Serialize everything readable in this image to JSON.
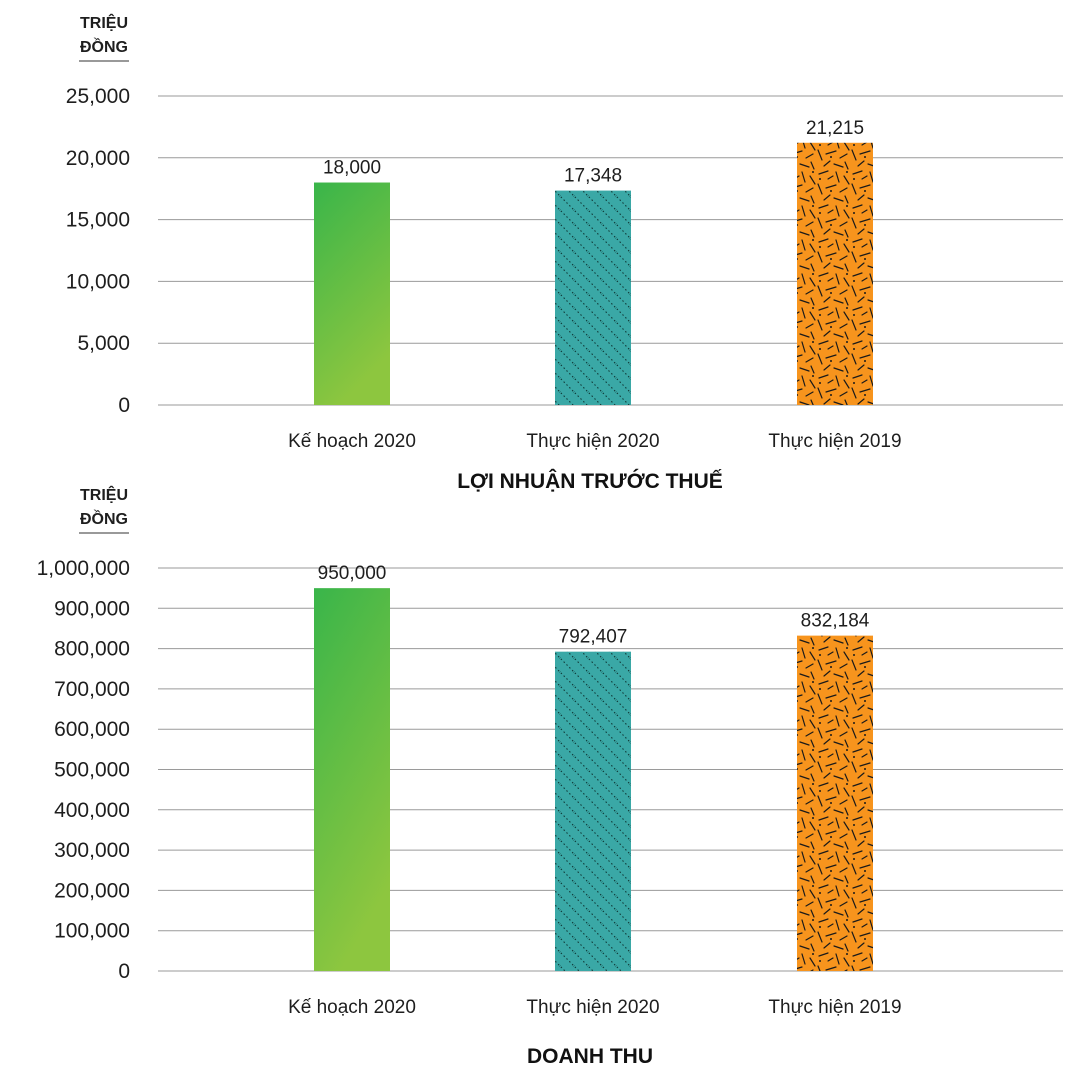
{
  "chart_data": [
    {
      "type": "bar",
      "title": "LỢI NHUẬN TRƯỚC THUẾ",
      "unit_line1": "TRIỆU",
      "unit_line2": "ĐỒNG",
      "categories": [
        "Kế hoạch 2020",
        "Thực hiện 2020",
        "Thực hiện 2019"
      ],
      "values": [
        18000,
        17348,
        21215
      ],
      "value_labels": [
        "18,000",
        "17,348",
        "21,215"
      ],
      "ylim": [
        0,
        25000
      ],
      "yticks": [
        0,
        5000,
        10000,
        15000,
        20000,
        25000
      ],
      "ytick_labels": [
        "0",
        "5,000",
        "10,000",
        "15,000",
        "20,000",
        "25,000"
      ],
      "grid": true,
      "bar_styles": [
        "green-gradient",
        "teal-dotted-diagonal",
        "orange-dashes"
      ],
      "colors": [
        "#3cb54a",
        "#3aa8a6",
        "#f7941d"
      ]
    },
    {
      "type": "bar",
      "title": "DOANH THU",
      "unit_line1": "TRIỆU",
      "unit_line2": "ĐỒNG",
      "categories": [
        "Kế hoạch 2020",
        "Thực hiện 2020",
        "Thực hiện 2019"
      ],
      "values": [
        950000,
        792407,
        832184
      ],
      "value_labels": [
        "950,000",
        "792,407",
        "832,184"
      ],
      "ylim": [
        0,
        1000000
      ],
      "yticks": [
        0,
        100000,
        200000,
        300000,
        400000,
        500000,
        600000,
        700000,
        800000,
        900000,
        1000000
      ],
      "ytick_labels": [
        "0",
        "100,000",
        "200,000",
        "300,000",
        "400,000",
        "500,000",
        "600,000",
        "700,000",
        "800,000",
        "900,000",
        "1,000,000"
      ],
      "grid": true,
      "bar_styles": [
        "green-gradient",
        "teal-dotted-diagonal",
        "orange-dashes"
      ],
      "colors": [
        "#3cb54a",
        "#3aa8a6",
        "#f7941d"
      ]
    }
  ]
}
